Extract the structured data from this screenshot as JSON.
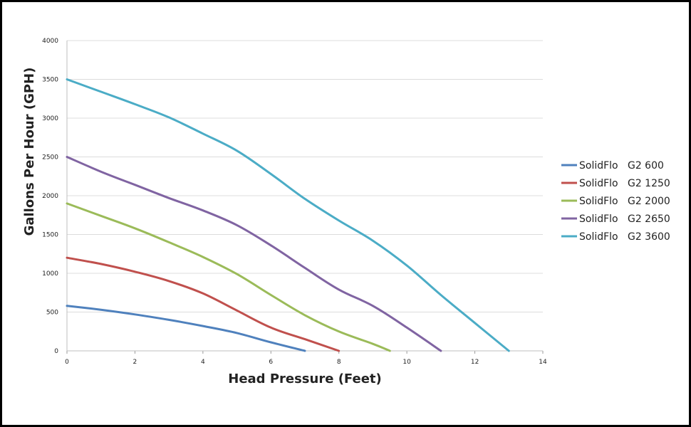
{
  "chart_data": {
    "type": "line",
    "title": "",
    "xlabel": "Head Pressure (Feet)",
    "ylabel": "Gallons Per Hour (GPH)",
    "xlim": [
      0,
      14
    ],
    "ylim": [
      0,
      4000
    ],
    "x_ticks": [
      0,
      2,
      4,
      6,
      8,
      10,
      12,
      14
    ],
    "y_ticks": [
      0,
      500,
      1000,
      1500,
      2000,
      2500,
      3000,
      3500,
      4000
    ],
    "grid": "horizontal",
    "legend_position": "right",
    "series": [
      {
        "name": "SolidFlo   G2 600",
        "color": "#4f81bd",
        "points": [
          [
            0,
            580
          ],
          [
            1,
            530
          ],
          [
            2,
            470
          ],
          [
            3,
            400
          ],
          [
            4,
            320
          ],
          [
            5,
            230
          ],
          [
            6,
            110
          ],
          [
            7,
            0
          ]
        ]
      },
      {
        "name": "SolidFlo   G2 1250",
        "color": "#c0504d",
        "points": [
          [
            0,
            1200
          ],
          [
            1,
            1120
          ],
          [
            2,
            1020
          ],
          [
            3,
            900
          ],
          [
            4,
            740
          ],
          [
            5,
            520
          ],
          [
            6,
            300
          ],
          [
            7,
            150
          ],
          [
            8,
            0
          ]
        ]
      },
      {
        "name": "SolidFlo   G2 2000",
        "color": "#9bbb59",
        "points": [
          [
            0,
            1900
          ],
          [
            1,
            1740
          ],
          [
            2,
            1580
          ],
          [
            3,
            1400
          ],
          [
            4,
            1210
          ],
          [
            5,
            990
          ],
          [
            6,
            720
          ],
          [
            7,
            460
          ],
          [
            8,
            250
          ],
          [
            9,
            90
          ],
          [
            9.5,
            0
          ]
        ]
      },
      {
        "name": "SolidFlo   G2 2650",
        "color": "#8064a2",
        "points": [
          [
            0,
            2500
          ],
          [
            1,
            2310
          ],
          [
            2,
            2140
          ],
          [
            3,
            1970
          ],
          [
            4,
            1810
          ],
          [
            5,
            1620
          ],
          [
            6,
            1360
          ],
          [
            7,
            1070
          ],
          [
            8,
            790
          ],
          [
            9,
            580
          ],
          [
            10,
            300
          ],
          [
            11,
            0
          ]
        ]
      },
      {
        "name": "SolidFlo   G2 3600",
        "color": "#4bacc6",
        "points": [
          [
            0,
            3500
          ],
          [
            1,
            3340
          ],
          [
            2,
            3180
          ],
          [
            3,
            3010
          ],
          [
            4,
            2800
          ],
          [
            5,
            2580
          ],
          [
            6,
            2280
          ],
          [
            7,
            1960
          ],
          [
            8,
            1680
          ],
          [
            9,
            1420
          ],
          [
            10,
            1100
          ],
          [
            11,
            720
          ],
          [
            12,
            360
          ],
          [
            13,
            0
          ]
        ]
      }
    ]
  }
}
